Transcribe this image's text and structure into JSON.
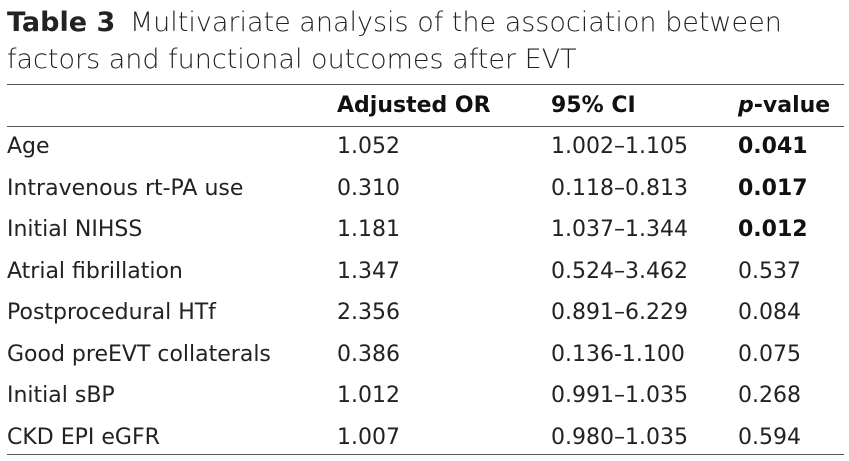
{
  "caption": {
    "label": "Table 3",
    "text": "Multivariate analysis of the association between factors and functional outcomes after EVT"
  },
  "table": {
    "headers": {
      "factor": "",
      "adjusted_or": "Adjusted OR",
      "ci": "95% CI",
      "p_italic": "p",
      "p_rest": "-value"
    },
    "rows": [
      {
        "factor": "Age",
        "or": "1.052",
        "ci": "1.002–1.105",
        "p": "0.041",
        "significant": true
      },
      {
        "factor": "Intravenous rt-PA use",
        "or": "0.310",
        "ci": "0.118–0.813",
        "p": "0.017",
        "significant": true
      },
      {
        "factor": "Initial NIHSS",
        "or": "1.181",
        "ci": "1.037–1.344",
        "p": "0.012",
        "significant": true
      },
      {
        "factor": "Atrial fibrillation",
        "or": "1.347",
        "ci": "0.524–3.462",
        "p": "0.537",
        "significant": false
      },
      {
        "factor": "Postprocedural HTf",
        "or": "2.356",
        "ci": "0.891–6.229",
        "p": "0.084",
        "significant": false
      },
      {
        "factor": "Good preEVT collaterals",
        "or": "0.386",
        "ci": "0.136-1.100",
        "p": "0.075",
        "significant": false
      },
      {
        "factor": "Initial sBP",
        "or": "1.012",
        "ci": "0.991–1.035",
        "p": "0.268",
        "significant": false
      },
      {
        "factor": "CKD EPI eGFR",
        "or": "1.007",
        "ci": "0.980–1.035",
        "p": "0.594",
        "significant": false
      }
    ]
  }
}
